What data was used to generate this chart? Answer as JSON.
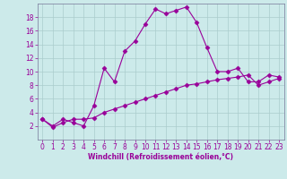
{
  "xlabel": "Windchill (Refroidissement éolien,°C)",
  "background_color": "#cceaea",
  "line_color": "#990099",
  "x_values": [
    0,
    1,
    2,
    3,
    4,
    5,
    6,
    7,
    8,
    9,
    10,
    11,
    12,
    13,
    14,
    15,
    16,
    17,
    18,
    19,
    20,
    21,
    22,
    23
  ],
  "curve1_y": [
    3,
    2,
    3,
    2.5,
    2,
    5,
    10.5,
    8.5,
    13,
    14.5,
    17,
    19.2,
    18.5,
    19,
    19.5,
    17.2,
    13.5,
    10,
    10,
    10.5,
    8.5,
    8.5,
    9.5,
    9.2
  ],
  "curve2_y": [
    3.0,
    1.8,
    2.5,
    3.0,
    3.0,
    3.2,
    4.0,
    4.5,
    5.0,
    5.5,
    6.0,
    6.5,
    7.0,
    7.5,
    8.0,
    8.2,
    8.5,
    8.8,
    9.0,
    9.2,
    9.5,
    8.0,
    8.5,
    9.0
  ],
  "ylim": [
    0,
    20
  ],
  "xlim": [
    -0.5,
    23.5
  ],
  "yticks": [
    2,
    4,
    6,
    8,
    10,
    12,
    14,
    16,
    18
  ],
  "xticks": [
    0,
    1,
    2,
    3,
    4,
    5,
    6,
    7,
    8,
    9,
    10,
    11,
    12,
    13,
    14,
    15,
    16,
    17,
    18,
    19,
    20,
    21,
    22,
    23
  ],
  "grid_color": "#aacccc",
  "text_color": "#990099",
  "spine_color": "#777799",
  "marker": "D",
  "markersize": 2.5,
  "linewidth": 0.8,
  "tick_labelsize": 5.5,
  "xlabel_fontsize": 5.5
}
